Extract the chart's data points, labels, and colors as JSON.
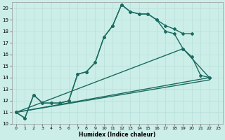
{
  "xlabel": "Humidex (Indice chaleur)",
  "bg_color": "#cceee8",
  "grid_color": "#b8ddd8",
  "line_color": "#1a6b60",
  "xlim": [
    -0.5,
    23.5
  ],
  "ylim": [
    10,
    20.5
  ],
  "xticks": [
    0,
    1,
    2,
    3,
    4,
    5,
    6,
    7,
    8,
    9,
    10,
    11,
    12,
    13,
    14,
    15,
    16,
    17,
    18,
    19,
    20,
    21,
    22,
    23
  ],
  "yticks": [
    10,
    11,
    12,
    13,
    14,
    15,
    16,
    17,
    18,
    19,
    20
  ],
  "series1_x": [
    0,
    1,
    2,
    3,
    4,
    5,
    6,
    7,
    8,
    9,
    10,
    11,
    12,
    13,
    14,
    15,
    16,
    17,
    18,
    19,
    20
  ],
  "series1_y": [
    11.0,
    10.5,
    12.5,
    11.8,
    11.8,
    11.8,
    12.0,
    14.3,
    14.5,
    15.3,
    17.5,
    18.5,
    20.3,
    19.7,
    19.5,
    19.5,
    19.0,
    18.5,
    18.2,
    17.8,
    17.8
  ],
  "series2_x": [
    0,
    1,
    2,
    3,
    4,
    5,
    6,
    7,
    8,
    9,
    10,
    11,
    12,
    13,
    14,
    15,
    16,
    17,
    18,
    19,
    20,
    21,
    22
  ],
  "series2_y": [
    11.0,
    10.5,
    12.5,
    11.8,
    11.8,
    11.8,
    12.0,
    14.3,
    14.5,
    15.3,
    17.5,
    18.5,
    20.3,
    19.7,
    19.5,
    19.5,
    19.0,
    18.0,
    17.8,
    16.5,
    15.8,
    14.2,
    14.0
  ],
  "line2_x": [
    0,
    22
  ],
  "line2_y": [
    11.0,
    14.0
  ],
  "line3_x": [
    0,
    22
  ],
  "line3_y": [
    11.0,
    13.8
  ],
  "line4_x": [
    0,
    19,
    22
  ],
  "line4_y": [
    11.0,
    16.5,
    14.0
  ]
}
